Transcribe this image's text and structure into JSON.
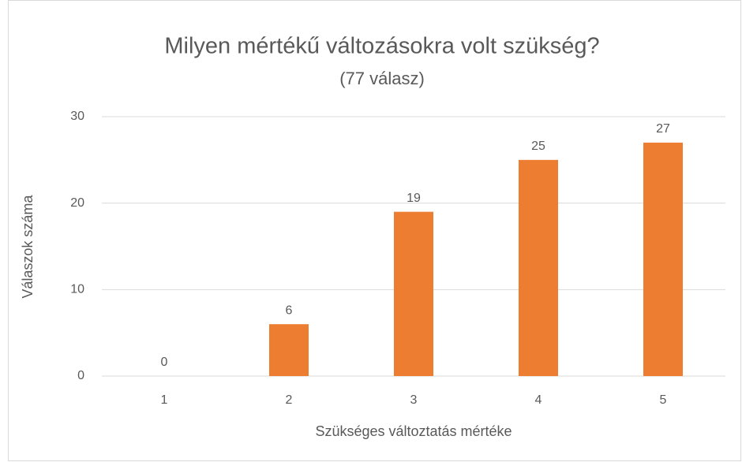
{
  "chart_data": {
    "type": "bar",
    "title": "Milyen mértékű változásokra volt szükség?",
    "subtitle": "(77 válasz)",
    "x_label": "Szükséges változtatás mértéke",
    "y_label": "Válaszok száma",
    "categories": [
      "1",
      "2",
      "3",
      "4",
      "5"
    ],
    "values": [
      0,
      6,
      19,
      25,
      27
    ],
    "color": "#ed7d31",
    "ylim": [
      0,
      30
    ],
    "yticks": [
      0,
      10,
      20,
      30
    ],
    "grid": true,
    "data_labels": true
  }
}
